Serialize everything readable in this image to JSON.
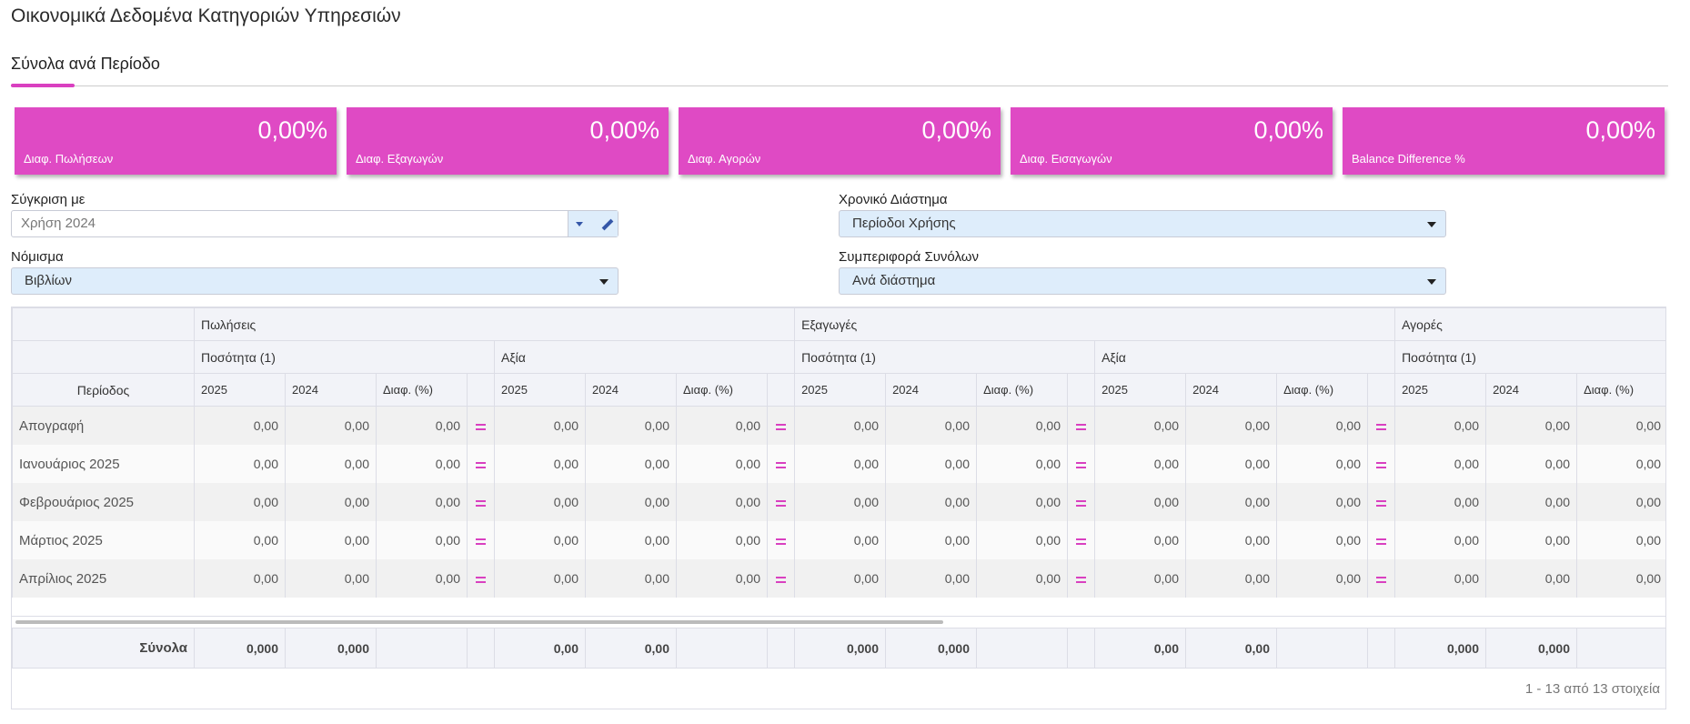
{
  "header": {
    "title": "Οικονομικά Δεδομένα Κατηγοριών Υπηρεσιών",
    "tab": "Σύνολα ανά Περίοδο"
  },
  "kpis": [
    {
      "value": "0,00%",
      "label": "Διαφ. Πωλήσεων"
    },
    {
      "value": "0,00%",
      "label": "Διαφ. Εξαγωγών"
    },
    {
      "value": "0,00%",
      "label": "Διαφ. Αγορών"
    },
    {
      "value": "0,00%",
      "label": "Διαφ. Εισαγωγών"
    },
    {
      "value": "0,00%",
      "label": "Balance Difference %"
    }
  ],
  "filters": [
    {
      "label": "Σύγκριση με",
      "value": "Χρήση 2024"
    },
    {
      "label": "Χρονικό Διάστημα",
      "value": "Περίοδοι Χρήσης"
    },
    {
      "label": "Νόμισμα",
      "value": "Βιβλίων"
    },
    {
      "label": "Συμπεριφορά Συνόλων",
      "value": "Ανά διάστημα"
    }
  ],
  "table": {
    "period_header": "Περίοδος",
    "groups": [
      {
        "name": "Πωλήσεις",
        "subs": [
          "Ποσότητα (1)",
          "Αξία"
        ]
      },
      {
        "name": "Εξαγωγές",
        "subs": [
          "Ποσότητα (1)",
          "Αξία"
        ]
      },
      {
        "name": "Αγορές",
        "subs": [
          "Ποσότητα (1)"
        ]
      }
    ],
    "columns": [
      "2025",
      "2024",
      "Διαφ. (%)"
    ],
    "rows": [
      {
        "label": "Απογραφή",
        "cells": [
          "0,00",
          "0,00",
          "0,00",
          "0,00",
          "0,00",
          "0,00",
          "0,00",
          "0,00",
          "0,00",
          "0,00",
          "0,00",
          "0,00",
          "0,00",
          "0,00",
          "0,00"
        ]
      },
      {
        "label": "Ιανουάριος 2025",
        "cells": [
          "0,00",
          "0,00",
          "0,00",
          "0,00",
          "0,00",
          "0,00",
          "0,00",
          "0,00",
          "0,00",
          "0,00",
          "0,00",
          "0,00",
          "0,00",
          "0,00",
          "0,00"
        ]
      },
      {
        "label": "Φεβρουάριος 2025",
        "cells": [
          "0,00",
          "0,00",
          "0,00",
          "0,00",
          "0,00",
          "0,00",
          "0,00",
          "0,00",
          "0,00",
          "0,00",
          "0,00",
          "0,00",
          "0,00",
          "0,00",
          "0,00"
        ]
      },
      {
        "label": "Μάρτιος 2025",
        "cells": [
          "0,00",
          "0,00",
          "0,00",
          "0,00",
          "0,00",
          "0,00",
          "0,00",
          "0,00",
          "0,00",
          "0,00",
          "0,00",
          "0,00",
          "0,00",
          "0,00",
          "0,00"
        ]
      },
      {
        "label": "Απρίλιος 2025",
        "cells": [
          "0,00",
          "0,00",
          "0,00",
          "0,00",
          "0,00",
          "0,00",
          "0,00",
          "0,00",
          "0,00",
          "0,00",
          "0,00",
          "0,00",
          "0,00",
          "0,00",
          "0,00"
        ]
      }
    ],
    "totals": {
      "label": "Σύνολα",
      "cells": [
        "0,000",
        "0,000",
        null,
        "0,00",
        "0,00",
        null,
        "0,000",
        "0,000",
        null,
        "0,00",
        "0,00",
        null,
        "0,000",
        "0,000",
        null
      ]
    },
    "pager": "1 - 13 από 13 στοιχεία"
  }
}
